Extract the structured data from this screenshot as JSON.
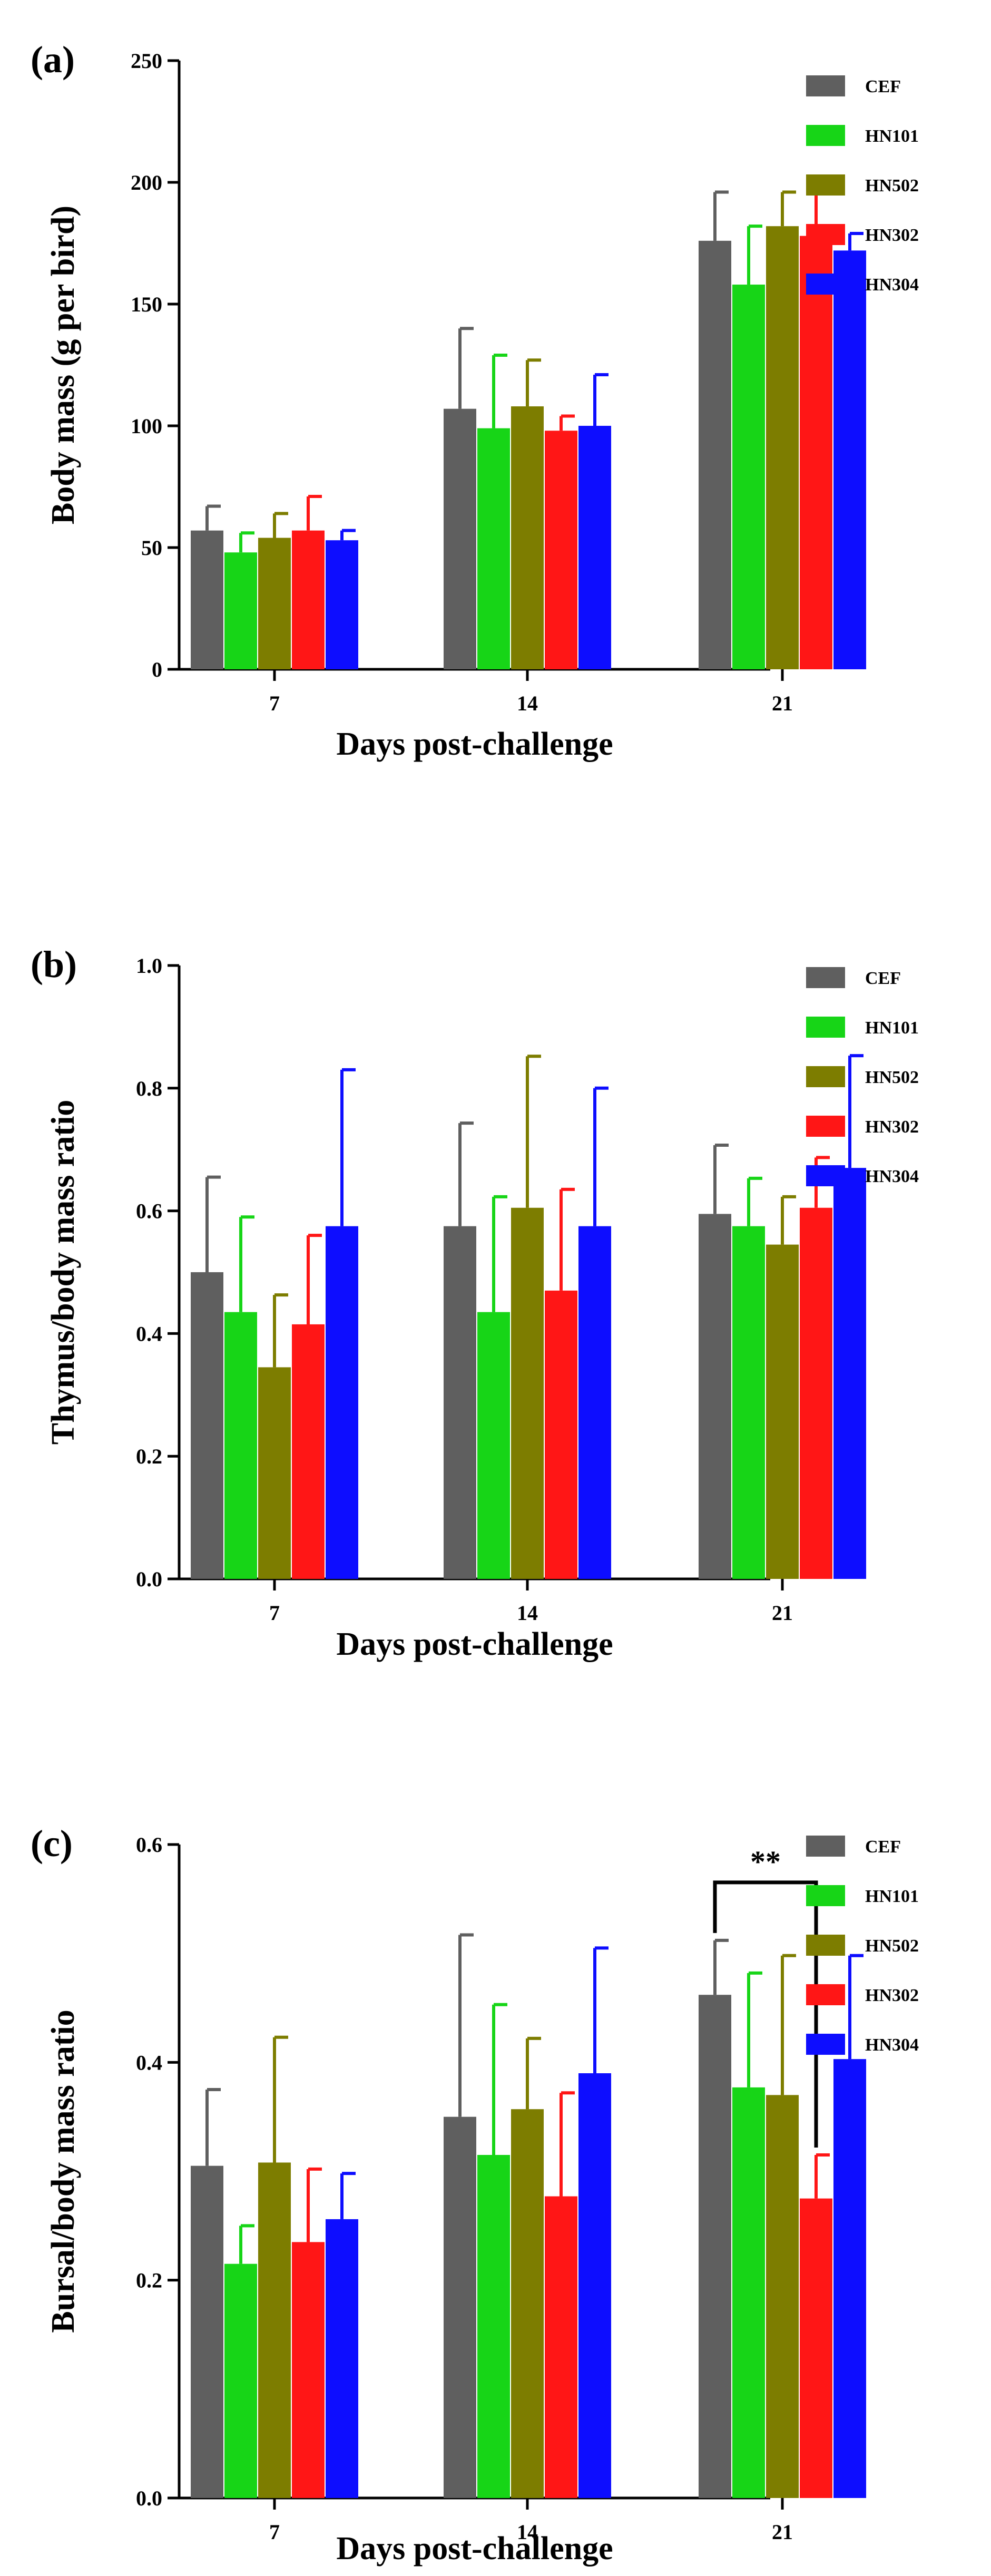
{
  "figure": {
    "series_names": [
      "CEF",
      "HN101",
      "HN502",
      "HN302",
      "HN304"
    ],
    "series_colors": [
      "#5f5f5f",
      "#17d517",
      "#7d7d00",
      "#ff1616",
      "#0d0dff"
    ],
    "error_color": "#000000"
  },
  "chart_data": [
    {
      "type": "bar",
      "panel_label": "(a)",
      "title": "",
      "xlabel": "Days post-challenge",
      "ylabel": "Body mass (g per bird)",
      "categories": [
        "7",
        "14",
        "21"
      ],
      "ylim": [
        0,
        250
      ],
      "yticks": [
        0,
        50,
        100,
        150,
        200,
        250
      ],
      "ytick_labels": [
        "0",
        "50",
        "100",
        "150",
        "200",
        "250"
      ],
      "legend_position": "top-right",
      "series": [
        {
          "name": "CEF",
          "values": [
            57,
            107,
            176
          ],
          "errors": [
            10,
            33,
            20
          ]
        },
        {
          "name": "HN101",
          "values": [
            48,
            99,
            158
          ],
          "errors": [
            8,
            30,
            24
          ]
        },
        {
          "name": "HN502",
          "values": [
            54,
            108,
            182
          ],
          "errors": [
            10,
            19,
            14
          ]
        },
        {
          "name": "HN302",
          "values": [
            57,
            98,
            178
          ],
          "errors": [
            14,
            6,
            20
          ]
        },
        {
          "name": "HN304",
          "values": [
            53,
            100,
            172
          ],
          "errors": [
            4,
            21,
            7
          ]
        }
      ],
      "annotations": []
    },
    {
      "type": "bar",
      "panel_label": "(b)",
      "title": "",
      "xlabel": "Days post-challenge",
      "ylabel": "Thymus/body mass ratio",
      "categories": [
        "7",
        "14",
        "21"
      ],
      "ylim": [
        0,
        1.0
      ],
      "yticks": [
        0,
        0.2,
        0.4,
        0.6,
        0.8,
        1.0
      ],
      "ytick_labels": [
        "0.0",
        "0.2",
        "0.4",
        "0.6",
        "0.8",
        "1.0"
      ],
      "legend_position": "top-right",
      "series": [
        {
          "name": "CEF",
          "values": [
            0.5,
            0.575,
            0.595
          ],
          "errors": [
            0.155,
            0.168,
            0.112
          ]
        },
        {
          "name": "HN101",
          "values": [
            0.435,
            0.435,
            0.575
          ],
          "errors": [
            0.155,
            0.188,
            0.078
          ]
        },
        {
          "name": "HN502",
          "values": [
            0.345,
            0.605,
            0.545
          ],
          "errors": [
            0.118,
            0.247,
            0.078
          ]
        },
        {
          "name": "HN302",
          "values": [
            0.415,
            0.47,
            0.605
          ],
          "errors": [
            0.145,
            0.165,
            0.082
          ]
        },
        {
          "name": "HN304",
          "values": [
            0.575,
            0.575,
            0.67
          ],
          "errors": [
            0.255,
            0.225,
            0.183
          ]
        }
      ],
      "annotations": []
    },
    {
      "type": "bar",
      "panel_label": "(c)",
      "title": "",
      "xlabel": "Days post-challenge",
      "ylabel": "Bursal/body mass ratio",
      "categories": [
        "7",
        "14",
        "21"
      ],
      "ylim": [
        0,
        0.6
      ],
      "yticks": [
        0,
        0.2,
        0.4,
        0.6
      ],
      "ytick_labels": [
        "0.0",
        "0.2",
        "0.4",
        "0.6"
      ],
      "legend_position": "top-right",
      "series": [
        {
          "name": "CEF",
          "values": [
            0.305,
            0.35,
            0.462
          ],
          "errors": [
            0.07,
            0.167,
            0.05
          ]
        },
        {
          "name": "HN101",
          "values": [
            0.215,
            0.315,
            0.377
          ],
          "errors": [
            0.035,
            0.138,
            0.105
          ]
        },
        {
          "name": "HN502",
          "values": [
            0.308,
            0.357,
            0.37
          ],
          "errors": [
            0.115,
            0.065,
            0.128
          ]
        },
        {
          "name": "HN302",
          "values": [
            0.235,
            0.277,
            0.275
          ],
          "errors": [
            0.067,
            0.095,
            0.04
          ]
        },
        {
          "name": "HN304",
          "values": [
            0.256,
            0.39,
            0.403
          ],
          "errors": [
            0.042,
            0.115,
            0.095
          ]
        }
      ],
      "annotations": [
        {
          "text": "**",
          "category": "21",
          "between": [
            "CEF",
            "HN302"
          ]
        }
      ]
    }
  ]
}
